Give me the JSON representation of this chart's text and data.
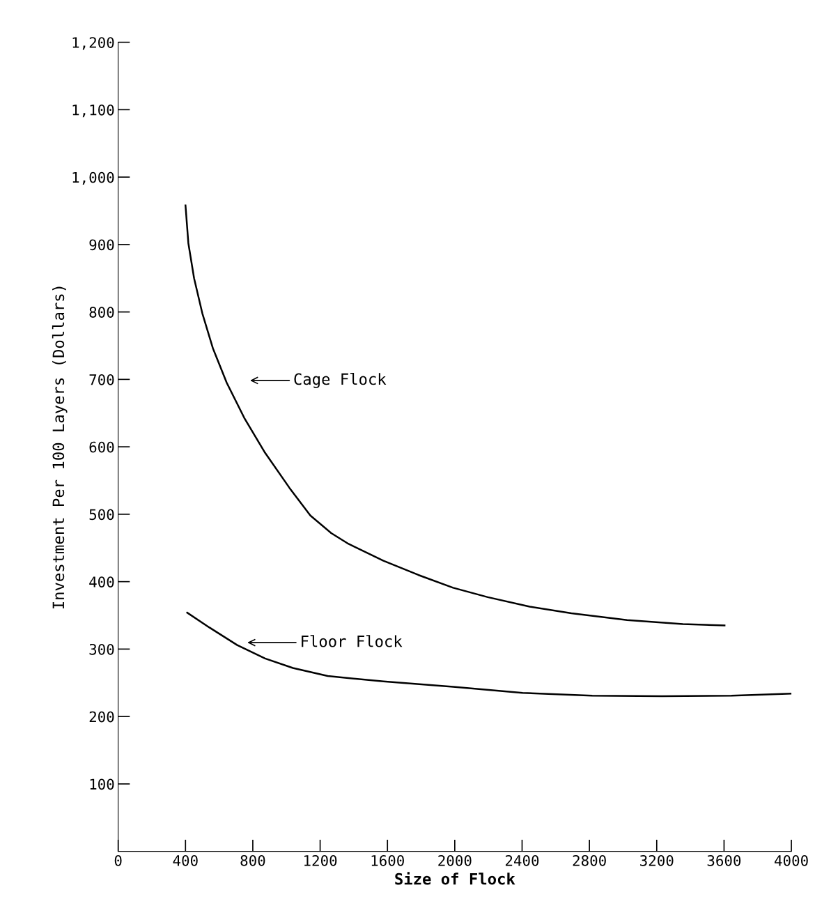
{
  "chart_data": {
    "type": "line",
    "xlabel": "Size of Flock",
    "ylabel": "Investment Per 100 Layers (Dollars)",
    "xlim": [
      0,
      4000
    ],
    "xticks": [
      0,
      400,
      800,
      1200,
      1600,
      2000,
      2400,
      2800,
      3200,
      3600,
      4000
    ],
    "ylim": [
      0,
      1200
    ],
    "yticks": [
      {
        "value": 100,
        "label": "100"
      },
      {
        "value": 200,
        "label": "200"
      },
      {
        "value": 300,
        "label": "300"
      },
      {
        "value": 400,
        "label": "400"
      },
      {
        "value": 500,
        "label": "500"
      },
      {
        "value": 600,
        "label": "600"
      },
      {
        "value": 700,
        "label": "700"
      },
      {
        "value": 800,
        "label": "800"
      },
      {
        "value": 900,
        "label": "900"
      },
      {
        "value": 1000,
        "label": "1,000"
      },
      {
        "value": 1100,
        "label": "1,100"
      },
      {
        "value": 1200,
        "label": "1,200"
      }
    ],
    "grid": false,
    "legend": false,
    "marker": "none",
    "line_style": "solid",
    "series": [
      {
        "color": "#000000",
        "x": [
          400,
          417,
          451,
          500,
          563,
          645,
          749,
          873,
          1018,
          1142,
          1266,
          1369,
          1576,
          1783,
          1990,
          2196,
          2445,
          2693,
          3024,
          3355,
          3603
        ],
        "values": [
          958,
          902,
          850,
          798,
          746,
          695,
          643,
          591,
          539,
          498,
          472,
          456,
          431,
          410,
          391,
          377,
          363,
          353,
          343,
          337,
          335
        ]
      },
      {
        "color": "#000000",
        "x": [
          410,
          542,
          707,
          873,
          1038,
          1245,
          1576,
          1990,
          2403,
          2817,
          3231,
          3644,
          4000
        ],
        "values": [
          354,
          332,
          306,
          286,
          272,
          260,
          252,
          244,
          235,
          231,
          230,
          231,
          234
        ]
      }
    ],
    "annotations": [
      "Cage Flock",
      "Floor Flock"
    ]
  }
}
